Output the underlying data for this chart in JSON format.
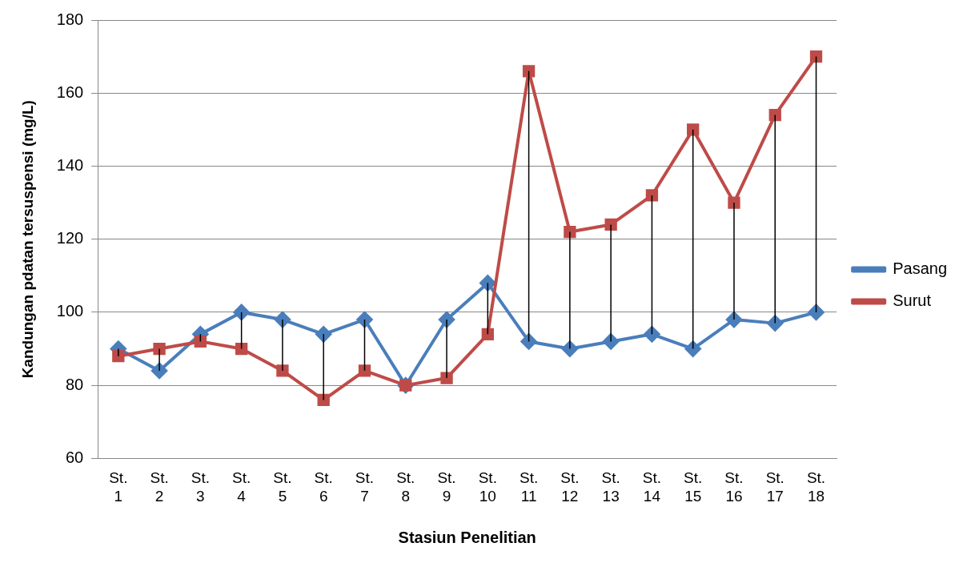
{
  "chart_data": {
    "type": "line",
    "xlabel": "Stasiun Penelitian",
    "ylabel": "Kandungan pdatan tersuspensi (mg/L)",
    "categories": [
      "St. 1",
      "St. 2",
      "St. 3",
      "St. 4",
      "St. 5",
      "St. 6",
      "St. 7",
      "St. 8",
      "St. 9",
      "St. 10",
      "St. 11",
      "St. 12",
      "St. 13",
      "St. 14",
      "St. 15",
      "St. 16",
      "St. 17",
      "St. 18"
    ],
    "series": [
      {
        "name": "Pasang",
        "color": "#4a7ebb",
        "marker": "diamond",
        "values": [
          90,
          84,
          94,
          100,
          98,
          94,
          98,
          80,
          98,
          108,
          92,
          90,
          92,
          94,
          90,
          98,
          97,
          100
        ]
      },
      {
        "name": "Surut",
        "color": "#be4b48",
        "marker": "square",
        "values": [
          88,
          90,
          92,
          90,
          84,
          76,
          84,
          80,
          82,
          94,
          166,
          122,
          124,
          132,
          150,
          130,
          154,
          170
        ],
        "errors": [
          [
            88,
            90
          ],
          [
            84,
            90
          ],
          [
            92,
            94
          ],
          [
            90,
            100
          ],
          [
            84,
            98
          ],
          [
            76,
            94
          ],
          [
            84,
            98
          ],
          null,
          [
            82,
            98
          ],
          [
            94,
            108
          ],
          [
            92,
            166
          ],
          [
            90,
            122
          ],
          [
            92,
            124
          ],
          [
            94,
            132
          ],
          [
            90,
            150
          ],
          [
            98,
            130
          ],
          [
            97,
            154
          ],
          [
            100,
            170
          ]
        ]
      }
    ],
    "ylim": [
      60,
      180
    ],
    "yticks": [
      60,
      80,
      100,
      120,
      140,
      160,
      180
    ],
    "grid": "y",
    "legend": "right"
  }
}
